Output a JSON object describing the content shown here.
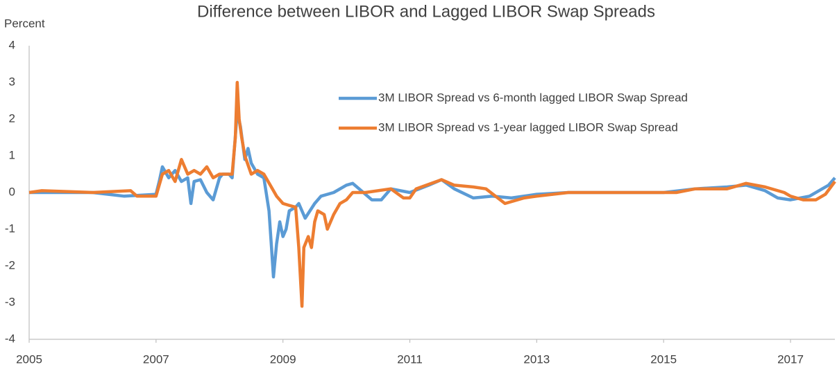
{
  "chart_data": {
    "type": "line",
    "title": "Difference between LIBOR and Lagged LIBOR Swap Spreads",
    "y_label": "Percent",
    "xlim": [
      2005,
      2017.7
    ],
    "xticks": [
      2005,
      2007,
      2009,
      2011,
      2013,
      2015,
      2017
    ],
    "ylim": [
      -4,
      4
    ],
    "yticks": [
      -4,
      -3,
      -2,
      -1,
      0,
      1,
      2,
      3,
      4
    ],
    "grid": false,
    "legend": "upper right",
    "series": [
      {
        "name": "3M LIBOR Spread vs 6-month lagged LIBOR Swap Spread",
        "color": "#5b9bd5",
        "x": [
          2005,
          2006,
          2006.5,
          2007,
          2007.05,
          2007.1,
          2007.2,
          2007.3,
          2007.4,
          2007.5,
          2007.55,
          2007.6,
          2007.7,
          2007.8,
          2007.9,
          2008.0,
          2008.05,
          2008.15,
          2008.2,
          2008.28,
          2008.33,
          2008.4,
          2008.45,
          2008.5,
          2008.6,
          2008.7,
          2008.78,
          2008.82,
          2008.85,
          2008.9,
          2008.95,
          2009.0,
          2009.05,
          2009.1,
          2009.2,
          2009.25,
          2009.35,
          2009.5,
          2009.6,
          2009.8,
          2010.0,
          2010.1,
          2010.2,
          2010.4,
          2010.55,
          2010.7,
          2011.0,
          2011.3,
          2011.5,
          2011.7,
          2012.0,
          2012.3,
          2012.6,
          2013.0,
          2013.5,
          2014.0,
          2015.0,
          2015.5,
          2016.0,
          2016.3,
          2016.6,
          2016.8,
          2017.0,
          2017.3,
          2017.5,
          2017.6,
          2017.7
        ],
        "values": [
          0,
          0,
          -0.1,
          -0.05,
          0.3,
          0.7,
          0.4,
          0.6,
          0.3,
          0.4,
          -0.3,
          0.3,
          0.35,
          0.0,
          -0.2,
          0.4,
          0.5,
          0.5,
          0.4,
          2.2,
          1.8,
          0.9,
          1.2,
          0.8,
          0.5,
          0.4,
          -0.5,
          -1.5,
          -2.3,
          -1.4,
          -0.8,
          -1.2,
          -1.0,
          -0.5,
          -0.4,
          -0.3,
          -0.7,
          -0.3,
          -0.1,
          0.0,
          0.2,
          0.25,
          0.1,
          -0.2,
          -0.2,
          0.1,
          0.0,
          0.2,
          0.35,
          0.1,
          -0.15,
          -0.1,
          -0.15,
          -0.05,
          0.0,
          0.0,
          0.0,
          0.1,
          0.15,
          0.2,
          0.05,
          -0.15,
          -0.2,
          -0.1,
          0.1,
          0.2,
          0.4
        ]
      },
      {
        "name": "3M LIBOR Spread vs 1-year lagged LIBOR Swap Spread",
        "color": "#ed7d31",
        "x": [
          2005,
          2005.2,
          2006,
          2006.6,
          2006.7,
          2007,
          2007.1,
          2007.2,
          2007.3,
          2007.4,
          2007.5,
          2007.6,
          2007.7,
          2007.8,
          2007.9,
          2008.0,
          2008.2,
          2008.25,
          2008.28,
          2008.31,
          2008.35,
          2008.4,
          2008.5,
          2008.6,
          2008.7,
          2008.8,
          2008.9,
          2009.0,
          2009.1,
          2009.2,
          2009.25,
          2009.3,
          2009.33,
          2009.4,
          2009.45,
          2009.5,
          2009.55,
          2009.65,
          2009.7,
          2009.8,
          2009.9,
          2010.0,
          2010.1,
          2010.3,
          2010.7,
          2010.9,
          2011.0,
          2011.1,
          2011.5,
          2011.7,
          2012.0,
          2012.2,
          2012.5,
          2012.8,
          2013.0,
          2013.5,
          2014.0,
          2015.0,
          2015.2,
          2015.5,
          2016.0,
          2016.3,
          2016.6,
          2016.9,
          2017.0,
          2017.2,
          2017.4,
          2017.55,
          2017.7
        ],
        "values": [
          0,
          0.05,
          0,
          0.05,
          -0.1,
          -0.1,
          0.5,
          0.6,
          0.3,
          0.9,
          0.5,
          0.6,
          0.5,
          0.7,
          0.4,
          0.5,
          0.5,
          1.5,
          3.0,
          2.0,
          1.5,
          1.0,
          0.5,
          0.6,
          0.5,
          0.2,
          -0.1,
          -0.3,
          -0.35,
          -0.4,
          -1.5,
          -3.1,
          -1.5,
          -1.2,
          -1.5,
          -0.8,
          -0.5,
          -0.6,
          -1.0,
          -0.6,
          -0.3,
          -0.2,
          0.0,
          0.0,
          0.1,
          -0.15,
          -0.15,
          0.1,
          0.35,
          0.2,
          0.15,
          0.1,
          -0.3,
          -0.15,
          -0.1,
          0.0,
          0.0,
          0.0,
          0.0,
          0.1,
          0.1,
          0.25,
          0.15,
          0.0,
          -0.1,
          -0.2,
          -0.2,
          -0.05,
          0.3
        ]
      }
    ]
  }
}
